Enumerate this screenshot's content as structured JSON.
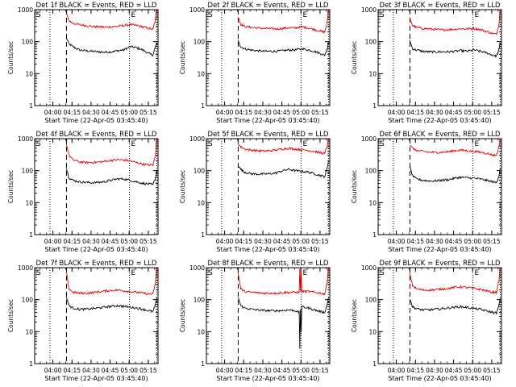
{
  "figure": {
    "time_label_prefix": "Start Time (",
    "start_time": "22-Apr-05 03:45:40",
    "time_label_suffix": ")",
    "ylabel": "Counts/sec",
    "x_ticks": [
      "04:00",
      "04:15",
      "04:30",
      "04:45",
      "05:00",
      "05:15"
    ],
    "x_tick_minutes": [
      14.33,
      29.33,
      44.33,
      59.33,
      74.33,
      89.33
    ],
    "y_ticks": [
      "1",
      "10",
      "100",
      "1000"
    ],
    "marker_s": "S",
    "marker_e": "E",
    "colors": {
      "events": "#000000",
      "lld": "#e00000",
      "axes": "#000000"
    }
  },
  "chart_data": [
    {
      "type": "line",
      "title": "Det 1f BLACK = Events, RED = LLD",
      "xlabel": "Start Time (22-Apr-05 03:45:40)",
      "ylabel": "Counts/sec",
      "xlim": [
        0,
        97
      ],
      "ylim": [
        1,
        1000
      ],
      "yscale": "log",
      "vlines_dotted": [
        12,
        74.5
      ],
      "vlines_dashed": [
        25
      ],
      "vline_end": 96,
      "series": [
        {
          "color": "black",
          "x": [
            25,
            27,
            30,
            35,
            40,
            45,
            50,
            55,
            60,
            65,
            70,
            75,
            80,
            85,
            90,
            93,
            95,
            96
          ],
          "y": [
            130,
            85,
            70,
            55,
            52,
            50,
            48,
            47,
            48,
            52,
            55,
            70,
            65,
            55,
            42,
            38,
            70,
            90
          ]
        },
        {
          "color": "red",
          "x": [
            25,
            27,
            30,
            35,
            40,
            45,
            50,
            55,
            60,
            65,
            70,
            75,
            80,
            85,
            90,
            93,
            95,
            96
          ],
          "y": [
            750,
            450,
            380,
            340,
            320,
            300,
            290,
            285,
            290,
            300,
            320,
            340,
            320,
            290,
            260,
            240,
            500,
            1000
          ]
        }
      ]
    },
    {
      "type": "line",
      "title": "Det 2f BLACK = Events, RED = LLD",
      "xlabel": "Start Time (22-Apr-05 03:45:40)",
      "ylabel": "Counts/sec",
      "xlim": [
        0,
        97
      ],
      "ylim": [
        1,
        1000
      ],
      "yscale": "log",
      "vlines_dotted": [
        12,
        74.5
      ],
      "vlines_dashed": [
        25
      ],
      "vline_end": 96,
      "series": [
        {
          "color": "black",
          "x": [
            25,
            27,
            30,
            35,
            40,
            45,
            50,
            55,
            60,
            65,
            70,
            75,
            80,
            85,
            90,
            93,
            95,
            96
          ],
          "y": [
            110,
            70,
            60,
            55,
            52,
            50,
            50,
            50,
            52,
            55,
            55,
            60,
            55,
            50,
            42,
            38,
            60,
            100
          ]
        },
        {
          "color": "red",
          "x": [
            25,
            27,
            30,
            35,
            40,
            45,
            50,
            55,
            60,
            65,
            70,
            75,
            80,
            85,
            90,
            93,
            95,
            96
          ],
          "y": [
            600,
            350,
            300,
            280,
            270,
            260,
            255,
            250,
            260,
            270,
            270,
            290,
            270,
            240,
            210,
            200,
            400,
            1000
          ]
        }
      ]
    },
    {
      "type": "line",
      "title": "Det 3f BLACK = Events, RED = LLD",
      "xlabel": "Start Time (22-Apr-05 03:45:40)",
      "ylabel": "Counts/sec",
      "xlim": [
        0,
        97
      ],
      "ylim": [
        1,
        1000
      ],
      "yscale": "log",
      "vlines_dotted": [
        12,
        74.5
      ],
      "vlines_dashed": [
        25
      ],
      "vline_end": 96,
      "series": [
        {
          "color": "black",
          "x": [
            25,
            27,
            30,
            35,
            40,
            45,
            50,
            55,
            60,
            65,
            70,
            75,
            80,
            85,
            90,
            93,
            95,
            96
          ],
          "y": [
            110,
            60,
            55,
            50,
            48,
            48,
            48,
            48,
            50,
            52,
            50,
            55,
            50,
            45,
            38,
            35,
            55,
            90
          ]
        },
        {
          "color": "red",
          "x": [
            25,
            27,
            30,
            35,
            40,
            45,
            50,
            55,
            60,
            65,
            70,
            75,
            80,
            85,
            90,
            93,
            95,
            96
          ],
          "y": [
            550,
            320,
            280,
            260,
            250,
            240,
            235,
            235,
            245,
            255,
            250,
            260,
            240,
            210,
            180,
            170,
            350,
            1000
          ]
        }
      ]
    },
    {
      "type": "line",
      "title": "Det 4f BLACK = Events, RED = LLD",
      "xlabel": "Start Time (22-Apr-05 03:45:40)",
      "ylabel": "Counts/sec",
      "xlim": [
        0,
        97
      ],
      "ylim": [
        1,
        1000
      ],
      "yscale": "log",
      "vlines_dotted": [
        12,
        74.5
      ],
      "vlines_dashed": [
        25
      ],
      "vline_end": 96,
      "series": [
        {
          "color": "black",
          "x": [
            25,
            27,
            30,
            35,
            40,
            45,
            50,
            55,
            60,
            65,
            70,
            75,
            80,
            85,
            90,
            93,
            95,
            96
          ],
          "y": [
            120,
            60,
            50,
            45,
            43,
            42,
            43,
            45,
            50,
            55,
            55,
            50,
            45,
            40,
            38,
            36,
            60,
            100
          ]
        },
        {
          "color": "red",
          "x": [
            25,
            27,
            30,
            35,
            40,
            45,
            50,
            55,
            60,
            65,
            70,
            75,
            80,
            85,
            90,
            93,
            95,
            96
          ],
          "y": [
            700,
            300,
            220,
            190,
            180,
            180,
            185,
            195,
            210,
            220,
            215,
            200,
            180,
            160,
            150,
            150,
            300,
            1000
          ]
        }
      ]
    },
    {
      "type": "line",
      "title": "Det 5f BLACK = Events, RED = LLD",
      "xlabel": "Start Time (22-Apr-05 03:45:40)",
      "ylabel": "Counts/sec",
      "xlim": [
        0,
        97
      ],
      "ylim": [
        1,
        1000
      ],
      "yscale": "log",
      "vlines_dotted": [
        12,
        74.5
      ],
      "vlines_dashed": [
        25
      ],
      "vline_end": 96,
      "series": [
        {
          "color": "black",
          "x": [
            25,
            27,
            30,
            35,
            40,
            45,
            50,
            55,
            60,
            65,
            70,
            75,
            80,
            85,
            90,
            93,
            95,
            96
          ],
          "y": [
            150,
            110,
            90,
            80,
            78,
            78,
            80,
            85,
            100,
            110,
            100,
            95,
            90,
            80,
            70,
            65,
            120,
            200
          ]
        },
        {
          "color": "red",
          "x": [
            25,
            27,
            30,
            35,
            40,
            45,
            50,
            55,
            60,
            65,
            70,
            75,
            80,
            85,
            90,
            93,
            95,
            96
          ],
          "y": [
            700,
            550,
            480,
            440,
            420,
            410,
            420,
            440,
            480,
            500,
            470,
            450,
            430,
            400,
            360,
            340,
            600,
            1000
          ]
        }
      ]
    },
    {
      "type": "line",
      "title": "Det 6f BLACK = Events, RED = LLD",
      "xlabel": "Start Time (22-Apr-05 03:45:40)",
      "ylabel": "Counts/sec",
      "xlim": [
        0,
        97
      ],
      "ylim": [
        1,
        1000
      ],
      "yscale": "log",
      "vlines_dotted": [
        12,
        74.5
      ],
      "vlines_dashed": [
        25
      ],
      "vline_end": 96,
      "series": [
        {
          "color": "black",
          "x": [
            25,
            27,
            30,
            35,
            40,
            45,
            50,
            55,
            60,
            65,
            70,
            75,
            80,
            85,
            90,
            93,
            95,
            96
          ],
          "y": [
            130,
            70,
            55,
            50,
            48,
            48,
            50,
            52,
            58,
            62,
            60,
            58,
            55,
            50,
            45,
            42,
            70,
            120
          ]
        },
        {
          "color": "red",
          "x": [
            25,
            27,
            30,
            35,
            40,
            45,
            50,
            55,
            60,
            65,
            70,
            75,
            80,
            85,
            90,
            93,
            95,
            96
          ],
          "y": [
            650,
            500,
            430,
            400,
            380,
            370,
            375,
            390,
            420,
            440,
            420,
            400,
            380,
            350,
            310,
            300,
            550,
            1000
          ]
        }
      ]
    },
    {
      "type": "line",
      "title": "Det 7f BLACK = Events, RED = LLD",
      "xlabel": "Start Time (22-Apr-05 03:45:40)",
      "ylabel": "Counts/sec",
      "xlim": [
        0,
        97
      ],
      "ylim": [
        1,
        1000
      ],
      "yscale": "log",
      "vlines_dotted": [
        12,
        74.5
      ],
      "vlines_dashed": [
        25
      ],
      "vline_end": 96,
      "series": [
        {
          "color": "black",
          "x": [
            25,
            27,
            30,
            35,
            40,
            45,
            50,
            55,
            60,
            65,
            70,
            75,
            80,
            85,
            90,
            93,
            95,
            96
          ],
          "y": [
            120,
            65,
            55,
            50,
            50,
            52,
            55,
            58,
            62,
            65,
            62,
            58,
            55,
            50,
            45,
            42,
            70,
            120
          ]
        },
        {
          "color": "red",
          "x": [
            25,
            27,
            30,
            35,
            40,
            45,
            50,
            55,
            60,
            65,
            70,
            75,
            80,
            85,
            90,
            93,
            95,
            96
          ],
          "y": [
            700,
            220,
            170,
            160,
            160,
            165,
            175,
            185,
            195,
            200,
            190,
            180,
            170,
            160,
            150,
            150,
            350,
            1000
          ]
        }
      ]
    },
    {
      "type": "line",
      "title": "Det 8f BLACK = Events, RED = LLD",
      "xlabel": "Start Time (22-Apr-05 03:45:40)",
      "ylabel": "Counts/sec",
      "xlim": [
        0,
        97
      ],
      "ylim": [
        1,
        1000
      ],
      "yscale": "log",
      "vlines_dotted": [
        12,
        74.5
      ],
      "vlines_dashed": [
        25
      ],
      "vline_end": 96,
      "series": [
        {
          "color": "black",
          "x": [
            25,
            27,
            30,
            35,
            40,
            45,
            50,
            55,
            60,
            65,
            70,
            73,
            73.5,
            74,
            74.5,
            75,
            80,
            85,
            90,
            93,
            95,
            96
          ],
          "y": [
            120,
            65,
            55,
            50,
            48,
            46,
            45,
            45,
            46,
            48,
            45,
            40,
            3,
            50,
            10,
            60,
            55,
            48,
            42,
            40,
            70,
            120
          ]
        },
        {
          "color": "red",
          "x": [
            25,
            27,
            30,
            35,
            40,
            45,
            50,
            55,
            60,
            65,
            70,
            73,
            73.5,
            74,
            74.5,
            75,
            80,
            85,
            90,
            93,
            95,
            96
          ],
          "y": [
            700,
            220,
            180,
            170,
            165,
            160,
            160,
            160,
            165,
            170,
            170,
            165,
            1000,
            170,
            1000,
            180,
            180,
            170,
            160,
            150,
            350,
            1000
          ]
        }
      ]
    },
    {
      "type": "line",
      "title": "Det 9f BLACK = Events, RED = LLD",
      "xlabel": "Start Time (22-Apr-05 03:45:40)",
      "ylabel": "Counts/sec",
      "xlim": [
        0,
        97
      ],
      "ylim": [
        1,
        1000
      ],
      "yscale": "log",
      "vlines_dotted": [
        12,
        74.5
      ],
      "vlines_dashed": [
        25
      ],
      "vline_end": 96,
      "series": [
        {
          "color": "black",
          "x": [
            25,
            27,
            30,
            35,
            40,
            45,
            50,
            55,
            60,
            65,
            70,
            75,
            80,
            85,
            90,
            93,
            95,
            96
          ],
          "y": [
            110,
            60,
            52,
            48,
            48,
            50,
            52,
            55,
            58,
            60,
            57,
            53,
            50,
            45,
            40,
            38,
            65,
            110
          ]
        },
        {
          "color": "red",
          "x": [
            25,
            27,
            30,
            35,
            40,
            45,
            50,
            55,
            60,
            65,
            70,
            75,
            80,
            85,
            90,
            93,
            95,
            96
          ],
          "y": [
            650,
            280,
            220,
            200,
            200,
            205,
            215,
            225,
            240,
            250,
            240,
            225,
            210,
            190,
            170,
            170,
            400,
            1000
          ]
        }
      ]
    }
  ]
}
